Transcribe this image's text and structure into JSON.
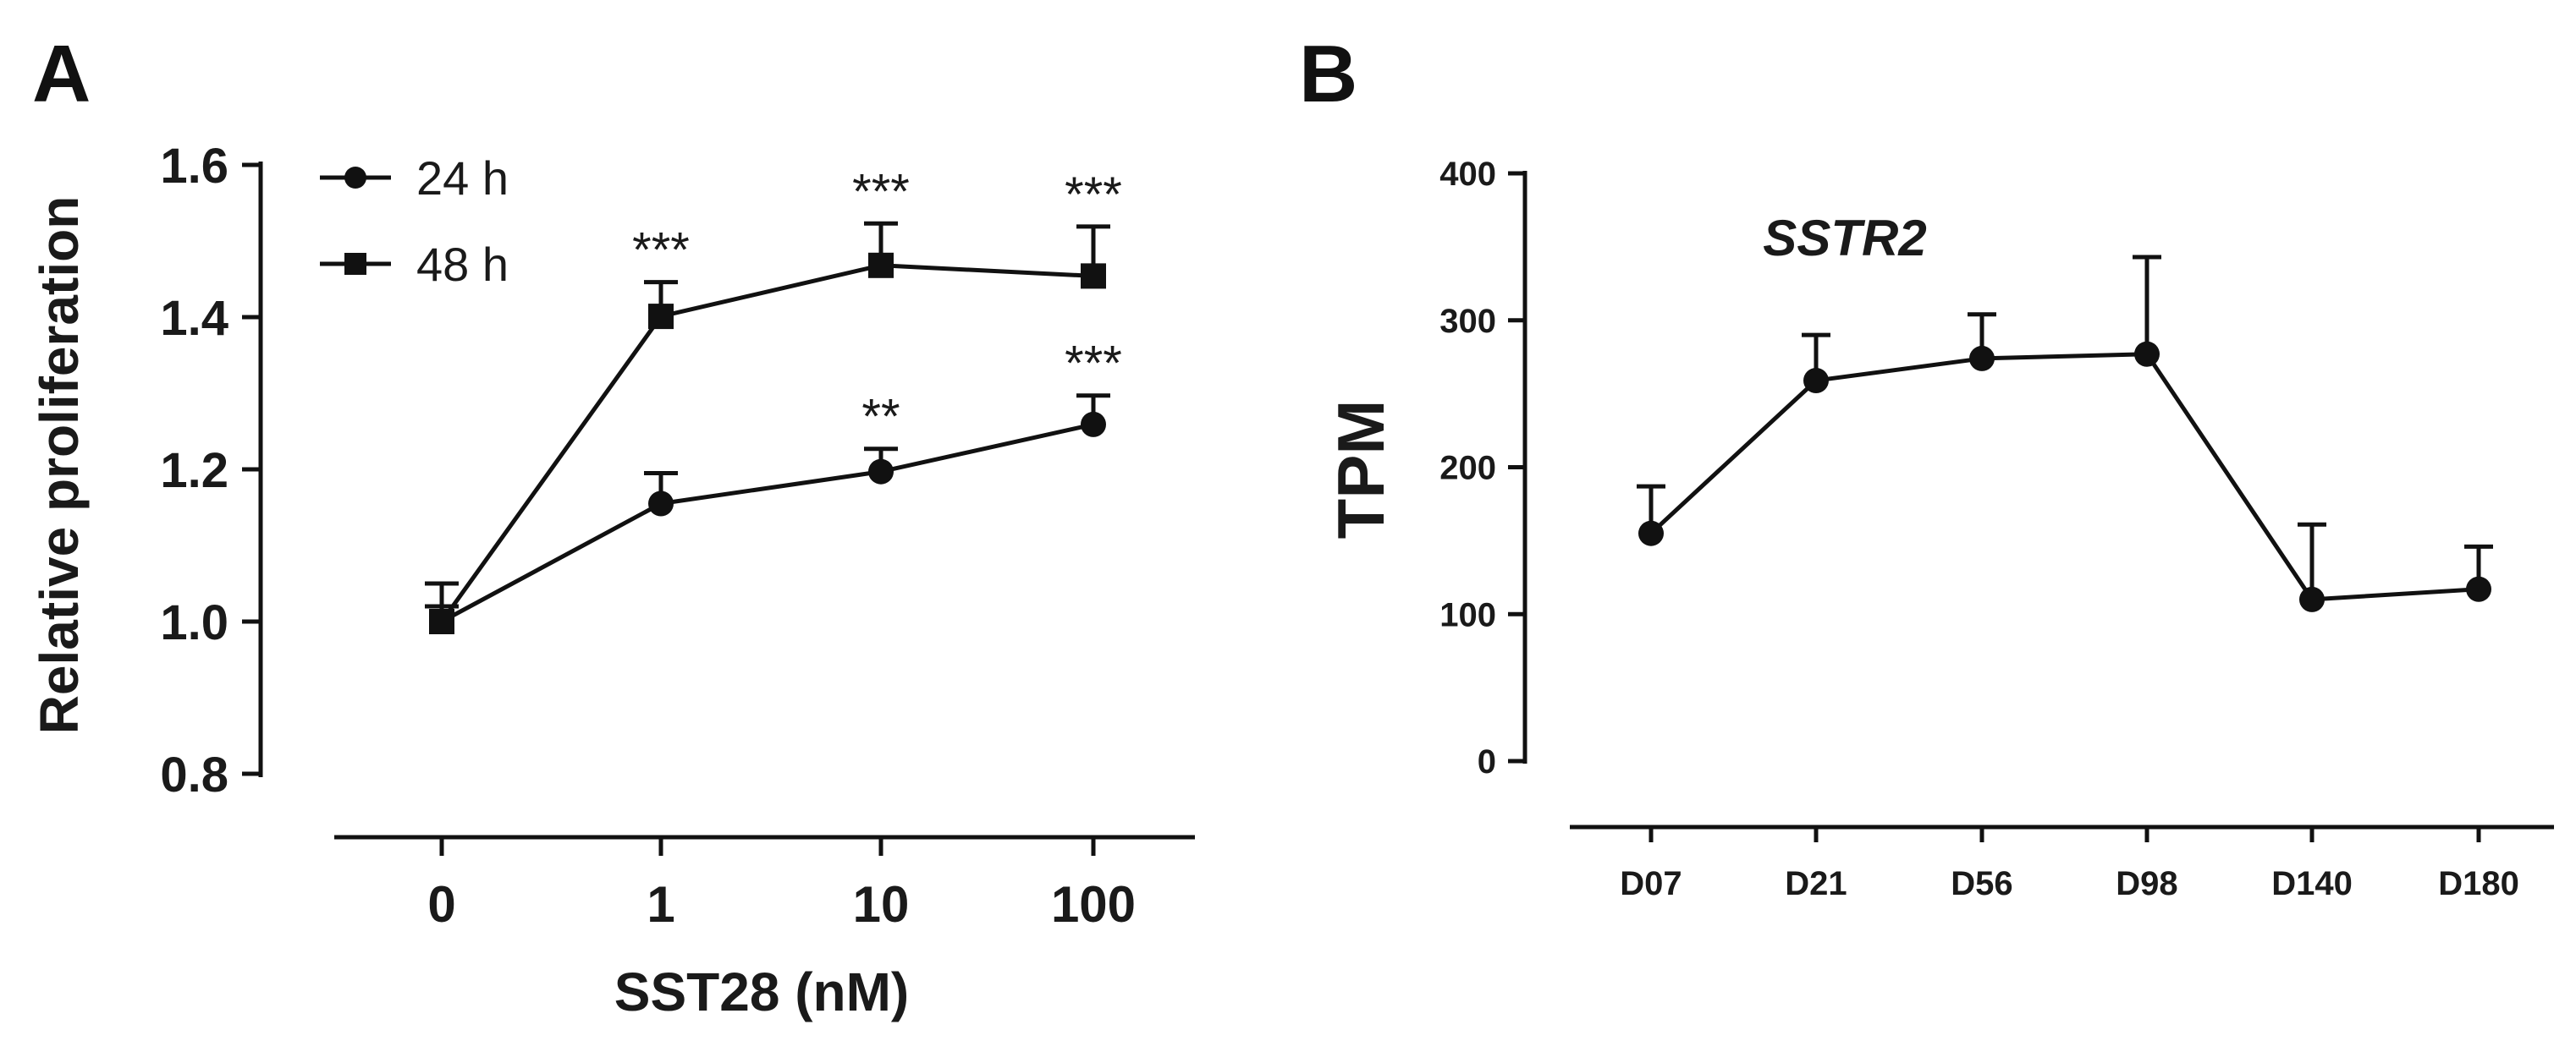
{
  "chart_data": [
    {
      "panel": "A",
      "type": "line",
      "categories": [
        "0",
        "1",
        "10",
        "100"
      ],
      "xlabel": "SST28 (nM)",
      "ylabel": "Relative proliferation",
      "ylim": [
        0.8,
        1.6
      ],
      "yticks": [
        "0.8",
        "1.0",
        "1.2",
        "1.4",
        "1.6"
      ],
      "legend": "top-left",
      "series": [
        {
          "name": "24 h",
          "marker": "circle",
          "values": [
            1.0,
            1.155,
            1.197,
            1.259
          ],
          "errors": [
            0.05,
            0.04,
            0.03,
            0.038
          ],
          "significance": [
            "",
            "",
            "**",
            "***"
          ]
        },
        {
          "name": "48 h",
          "marker": "square",
          "values": [
            1.0,
            1.401,
            1.468,
            1.454
          ],
          "errors": [
            0.02,
            0.045,
            0.055,
            0.065
          ],
          "significance": [
            "",
            "***",
            "***",
            "***"
          ]
        }
      ]
    },
    {
      "panel": "B",
      "type": "line",
      "title": "SSTR2",
      "categories": [
        "D07",
        "D21",
        "D56",
        "D98",
        "D140",
        "D180"
      ],
      "xlabel": "",
      "ylabel": "TPM",
      "ylim": [
        0,
        400
      ],
      "yticks": [
        "0",
        "100",
        "200",
        "300",
        "400"
      ],
      "series": [
        {
          "name": "SSTR2",
          "marker": "circle",
          "values": [
            155,
            259,
            274,
            277,
            110,
            117
          ],
          "errors": [
            32,
            31,
            30,
            66,
            51,
            29
          ]
        }
      ]
    }
  ]
}
